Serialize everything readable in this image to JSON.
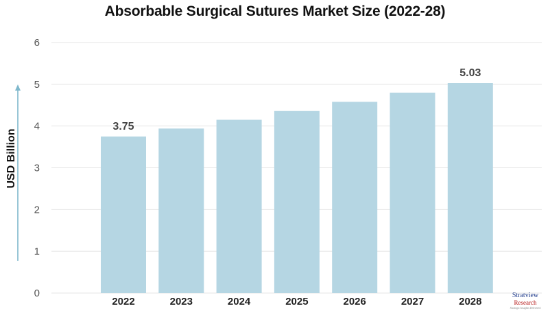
{
  "chart_data": {
    "type": "bar",
    "title": "Absorbable Surgical Sutures Market Size (2022-28)",
    "xlabel": "",
    "ylabel": "USD Billion",
    "categories": [
      "2022",
      "2023",
      "2024",
      "2025",
      "2026",
      "2027",
      "2028"
    ],
    "values": [
      3.75,
      3.94,
      4.15,
      4.36,
      4.58,
      4.8,
      5.03
    ],
    "data_labels": [
      "3.75",
      "",
      "",
      "",
      "",
      "",
      "5.03"
    ],
    "ylim": [
      0,
      6
    ],
    "yticks": [
      "0",
      "1",
      "2",
      "3",
      "4",
      "5",
      "6"
    ],
    "grid": true,
    "colors": {
      "bar": "#b5d6e3",
      "grid": "#e4e4e4",
      "arrow": "#7fb8cc"
    }
  },
  "logo": {
    "name": "Stratview",
    "sub": "Research",
    "tagline": "Strategic Insights Delivered"
  }
}
